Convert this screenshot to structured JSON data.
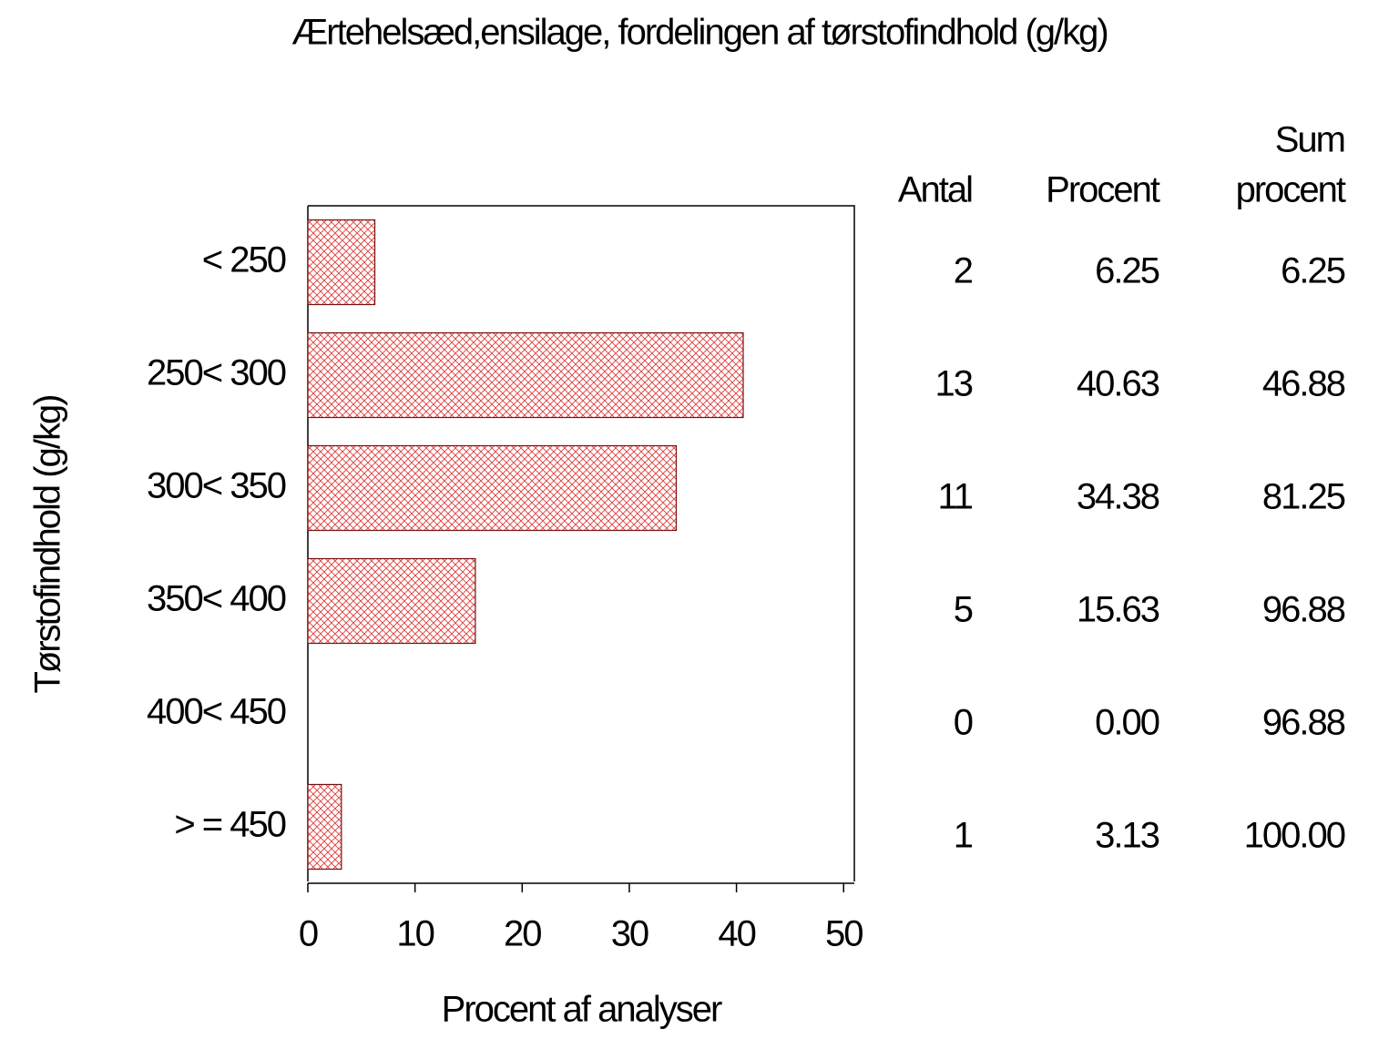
{
  "chart_data": {
    "type": "bar",
    "orientation": "horizontal",
    "title": "Ærtehelsæd,ensilage,  fordelingen  af  tørstofindhold  (g/kg)",
    "x_label": "Procent  af  analyser",
    "y_label": "Tørstofindhold  (g/kg)",
    "categories": [
      "< 250",
      "250< 300",
      "300< 350",
      "350< 400",
      "400< 450",
      "> = 450"
    ],
    "values": [
      6.25,
      40.63,
      34.38,
      15.63,
      0,
      3.13
    ],
    "value_labels": [
      "6.25",
      "40.63",
      "34.38",
      "15.63",
      "0.00",
      "3.13"
    ],
    "color": "#e03a3a",
    "xlim": [
      0,
      51
    ],
    "xticks": [
      0,
      10,
      20,
      30,
      40,
      50
    ],
    "column_headers": [
      [
        "Antal"
      ],
      [
        "Procent"
      ],
      [
        "Sum",
        "procent"
      ]
    ],
    "counts": [
      2,
      13,
      11,
      5,
      0,
      1
    ],
    "cumulative": [
      6.25,
      46.88,
      81.25,
      96.88,
      96.88,
      100
    ],
    "cumulative_labels": [
      "6.25",
      "46.88",
      "81.25",
      "96.88",
      "96.88",
      "100.00"
    ]
  }
}
